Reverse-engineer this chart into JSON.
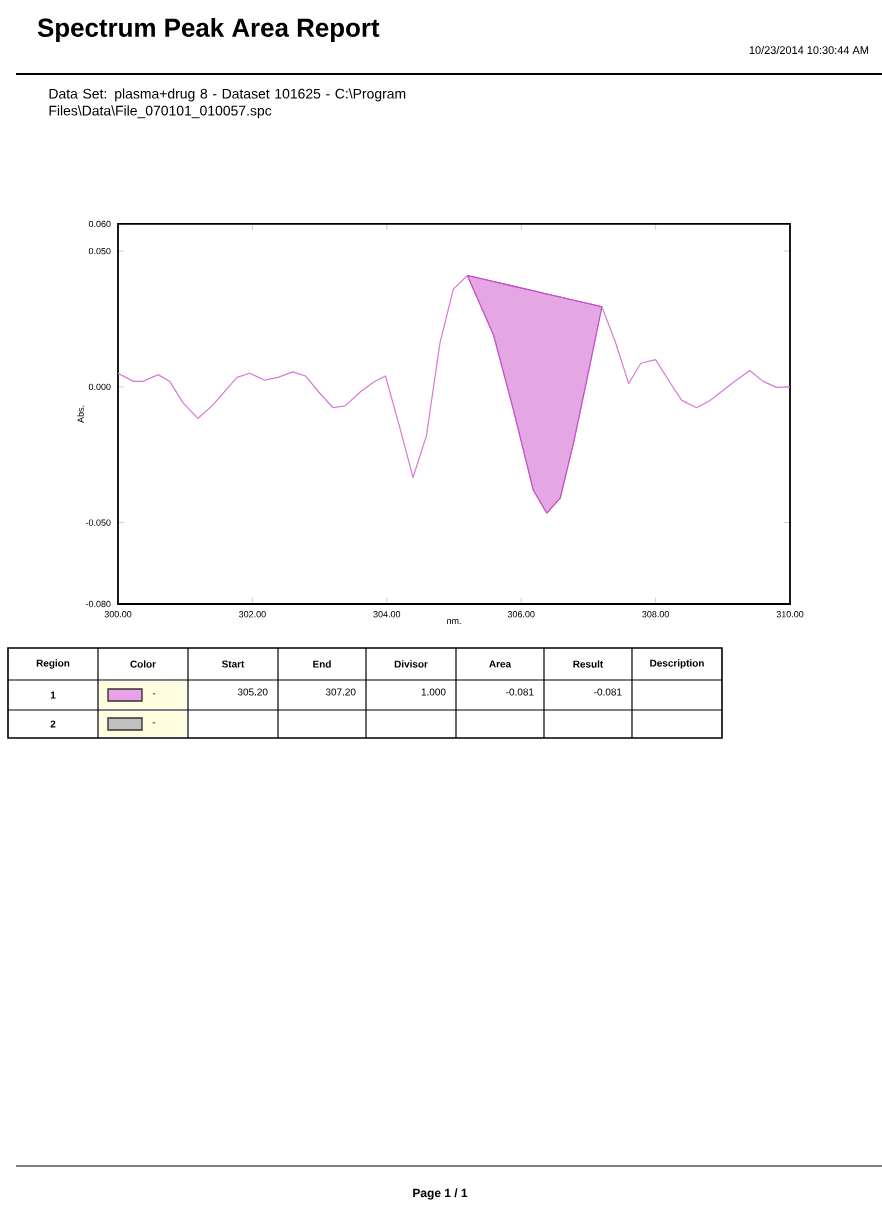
{
  "chart_data": [
    {
      "type": "line",
      "title": "Spectrum Peak Area Report",
      "subtitle": "Data Set: plasma+drug 8 - Dataset 101625 - C:\\Program Files\\Data\\File_070101_010057.spc",
      "annotations": [
        "10/23/2014  10:30:44 AM",
        "Page 1 / 1"
      ],
      "xlabel": "nm.",
      "ylabel": "Abs.",
      "x": [
        300.0,
        300.23,
        300.37,
        300.6,
        300.77,
        300.97,
        301.19,
        301.4,
        301.77,
        301.96,
        302.18,
        302.38,
        302.6,
        302.79,
        302.99,
        303.2,
        303.38,
        303.6,
        303.8,
        303.98,
        304.2,
        304.39,
        304.59,
        304.79,
        304.99,
        305.2,
        305.59,
        305.88,
        306.18,
        306.38,
        306.58,
        306.78,
        307.03,
        307.2,
        307.4,
        307.6,
        307.78,
        308.0,
        308.21,
        308.39,
        308.61,
        308.81,
        309.16,
        309.4,
        309.6,
        309.8,
        310.0
      ],
      "series": [
        {
          "color": "#d57ad5",
          "values": [
            0.005,
            0.002,
            0.002,
            0.0045,
            0.002,
            -0.006,
            -0.0116,
            -0.007,
            0.0035,
            0.005,
            0.0025,
            0.0035,
            0.0055,
            0.004,
            -0.002,
            -0.0077,
            -0.007,
            -0.002,
            0.0017,
            0.004,
            -0.0156,
            -0.0334,
            -0.018,
            0.016,
            0.036,
            0.041,
            0.019,
            -0.008,
            -0.038,
            -0.0465,
            -0.041,
            -0.0205,
            0.009,
            0.0295,
            0.0166,
            0.0012,
            0.0087,
            0.01,
            0.0017,
            -0.005,
            -0.0077,
            -0.005,
            0.0017,
            0.006,
            0.002,
            -0.0002,
            0.0
          ]
        },
        {
          "color": "#c84fc8",
          "x": [
            305.2,
            305.59,
            305.88,
            306.18,
            306.38,
            306.58,
            306.78,
            307.03,
            307.2
          ],
          "values": [
            0.041,
            0.0388,
            0.0371,
            0.0354,
            0.0342,
            0.0331,
            0.0319,
            0.0305,
            0.0295
          ],
          "lower": [
            0.041,
            0.019,
            -0.008,
            -0.038,
            -0.0465,
            -0.041,
            -0.0205,
            0.009,
            0.0295
          ],
          "upper": [
            0.041,
            0.0388,
            0.0371,
            0.0354,
            0.0342,
            0.0331,
            0.0319,
            0.0305,
            0.0295
          ]
        }
      ],
      "xlim": [
        300,
        310
      ],
      "xticks": [
        {
          "value": 300,
          "label": "300.00"
        },
        {
          "value": 302,
          "label": "302.00"
        },
        {
          "value": 304,
          "label": "304.00"
        },
        {
          "value": 306,
          "label": "306.00"
        },
        {
          "value": 308,
          "label": "308.00"
        },
        {
          "value": 310,
          "label": "310.00"
        }
      ],
      "ylim": [
        -0.08,
        0.06
      ],
      "yticks": [
        {
          "value": -0.08,
          "label": "-0.080"
        },
        {
          "value": -0.05,
          "label": "-0.050"
        },
        {
          "value": 0,
          "label": "0.000"
        },
        {
          "value": 0.05,
          "label": "0.050"
        },
        {
          "value": 0.06,
          "label": "0.060"
        }
      ]
    },
    {
      "type": "other",
      "categories": [
        "Region",
        "Color",
        "Start",
        "End",
        "Divisor",
        "Area",
        "Result",
        "Description"
      ],
      "colors": [
        "#e9a0e6",
        "#c0c0c0"
      ],
      "cell_labels": [
        [
          "1",
          "-",
          "305.20",
          "307.20",
          "1.000",
          "-0.081",
          "-0.081",
          null
        ],
        [
          "2",
          "-",
          null,
          null,
          null,
          null,
          null,
          null
        ]
      ]
    }
  ]
}
